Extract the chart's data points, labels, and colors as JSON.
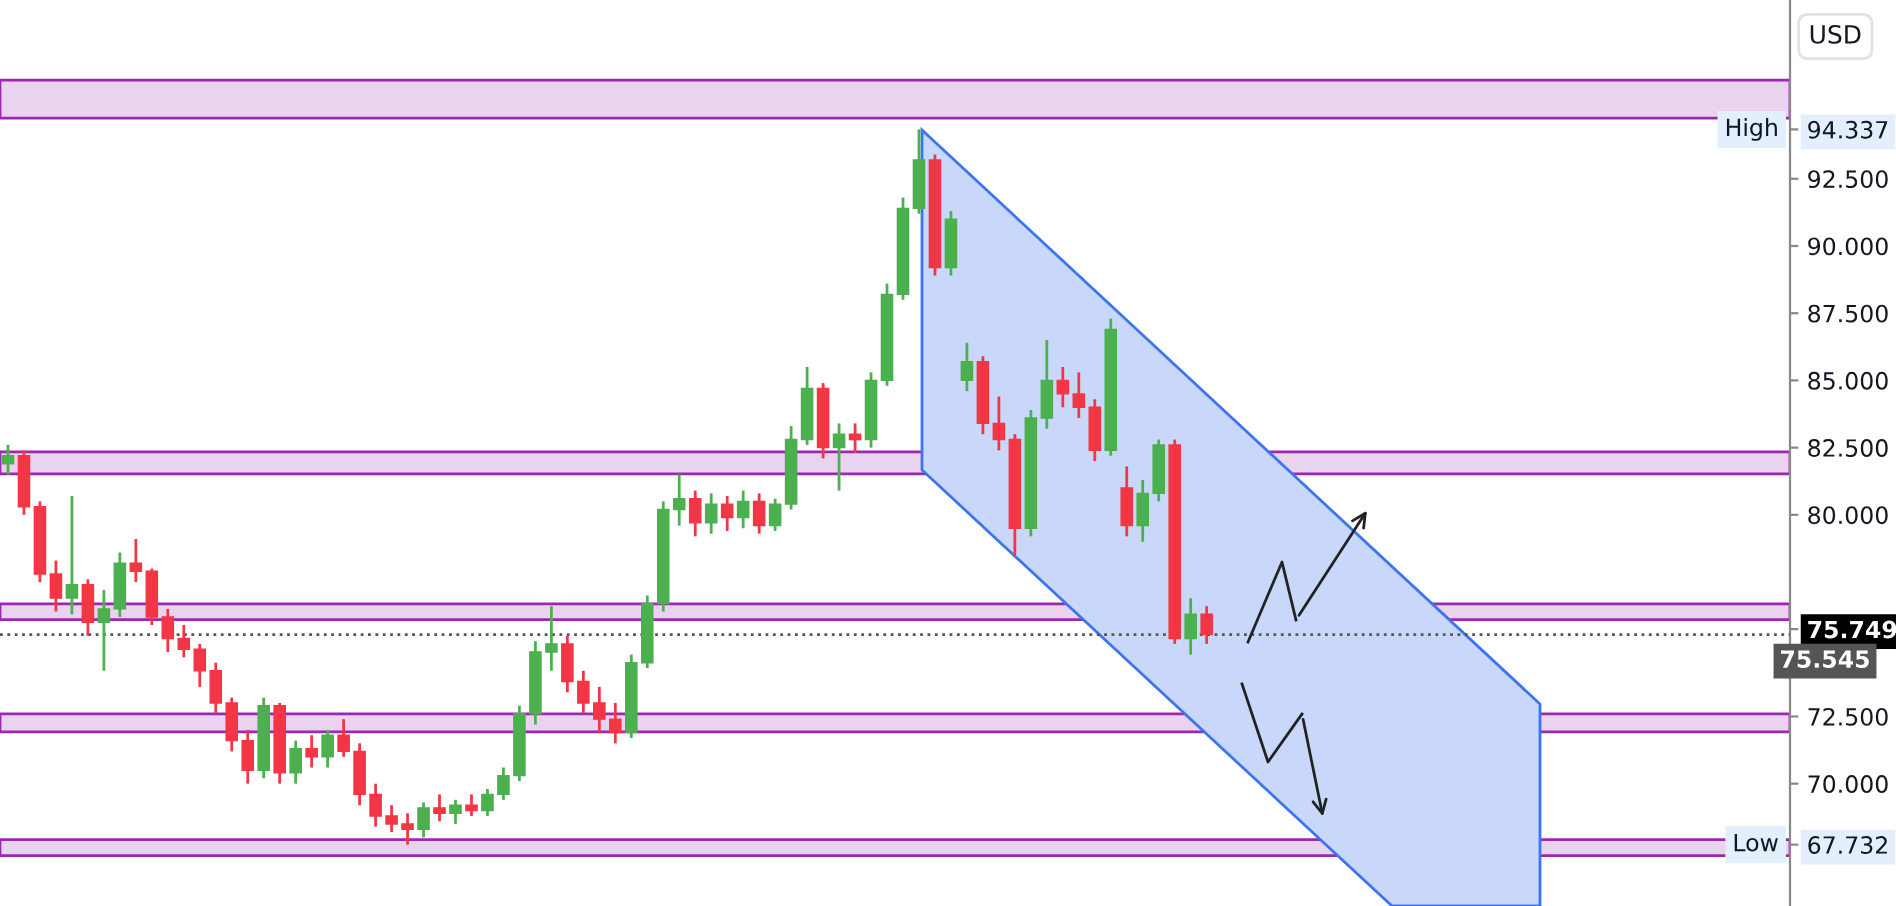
{
  "chart_data": {
    "type": "candlestick",
    "categories": [
      null,
      null,
      null,
      null,
      null,
      null,
      null,
      null,
      null,
      null,
      null,
      null,
      null,
      null,
      null,
      null,
      null,
      null,
      null,
      null,
      null,
      null,
      null,
      null,
      null,
      null,
      null,
      null,
      null,
      null,
      null,
      null,
      null,
      null,
      null,
      null,
      null,
      null,
      null,
      null,
      null,
      null,
      null,
      null,
      null,
      null,
      null,
      null,
      null,
      null,
      null,
      null,
      null,
      null,
      null,
      null,
      null,
      null,
      null,
      null,
      null,
      null,
      null,
      null,
      null,
      null,
      null,
      null,
      null,
      null,
      null,
      null,
      null,
      null,
      null,
      null,
      null,
      null,
      null,
      null,
      null,
      null,
      null,
      null,
      null,
      null,
      null,
      null,
      null,
      null,
      null,
      null,
      null,
      null,
      null,
      null,
      null,
      null,
      null,
      null,
      null,
      null,
      null,
      null,
      null,
      null,
      null,
      null,
      null,
      null,
      null,
      null
    ],
    "ohlc": [
      [
        81.9,
        82.6,
        81.5,
        82.2
      ],
      [
        82.2,
        82.4,
        80.0,
        80.3
      ],
      [
        80.3,
        80.5,
        77.5,
        77.8
      ],
      [
        77.8,
        78.3,
        76.4,
        76.9
      ],
      [
        76.9,
        80.7,
        76.3,
        77.4
      ],
      [
        77.4,
        77.6,
        75.5,
        76.0
      ],
      [
        76.0,
        77.2,
        74.2,
        76.5
      ],
      [
        76.5,
        78.6,
        76.2,
        78.2
      ],
      [
        78.2,
        79.1,
        77.5,
        77.9
      ],
      [
        77.9,
        78.0,
        75.9,
        76.2
      ],
      [
        76.2,
        76.5,
        74.9,
        75.4
      ],
      [
        75.4,
        75.9,
        74.7,
        75.0
      ],
      [
        75.0,
        75.2,
        73.6,
        74.2
      ],
      [
        74.2,
        74.5,
        72.6,
        73.0
      ],
      [
        73.0,
        73.2,
        71.2,
        71.6
      ],
      [
        71.6,
        72.0,
        70.0,
        70.5
      ],
      [
        70.5,
        73.2,
        70.2,
        72.9
      ],
      [
        72.9,
        73.0,
        70.0,
        70.4
      ],
      [
        70.4,
        71.6,
        70.0,
        71.3
      ],
      [
        71.3,
        71.8,
        70.6,
        71.0
      ],
      [
        71.0,
        72.0,
        70.6,
        71.8
      ],
      [
        71.8,
        72.4,
        71.0,
        71.2
      ],
      [
        71.2,
        71.5,
        69.2,
        69.6
      ],
      [
        69.6,
        70.0,
        68.4,
        68.8
      ],
      [
        68.8,
        69.2,
        68.2,
        68.5
      ],
      [
        68.5,
        68.9,
        67.732,
        68.3
      ],
      [
        68.3,
        69.3,
        68.0,
        69.1
      ],
      [
        69.1,
        69.6,
        68.6,
        68.9
      ],
      [
        68.9,
        69.4,
        68.5,
        69.2
      ],
      [
        69.2,
        69.6,
        68.8,
        69.0
      ],
      [
        69.0,
        69.8,
        68.8,
        69.6
      ],
      [
        69.6,
        70.6,
        69.4,
        70.3
      ],
      [
        70.3,
        72.9,
        70.1,
        72.6
      ],
      [
        72.6,
        75.3,
        72.2,
        74.9
      ],
      [
        74.9,
        76.6,
        74.2,
        75.2
      ],
      [
        75.2,
        75.5,
        73.4,
        73.8
      ],
      [
        73.8,
        74.2,
        72.6,
        73.0
      ],
      [
        73.0,
        73.6,
        71.9,
        72.4
      ],
      [
        72.4,
        73.0,
        71.5,
        71.9
      ],
      [
        71.9,
        74.8,
        71.7,
        74.5
      ],
      [
        74.5,
        77.0,
        74.3,
        76.7
      ],
      [
        76.7,
        80.5,
        76.4,
        80.2
      ],
      [
        80.2,
        81.5,
        79.6,
        80.6
      ],
      [
        80.6,
        80.9,
        79.2,
        79.7
      ],
      [
        79.7,
        80.8,
        79.3,
        80.4
      ],
      [
        80.4,
        80.7,
        79.4,
        79.9
      ],
      [
        79.9,
        80.9,
        79.5,
        80.5
      ],
      [
        80.5,
        80.8,
        79.3,
        79.6
      ],
      [
        79.6,
        80.6,
        79.4,
        80.4
      ],
      [
        80.4,
        83.3,
        80.2,
        82.8
      ],
      [
        82.8,
        85.5,
        82.6,
        84.7
      ],
      [
        84.7,
        84.9,
        82.1,
        82.5
      ],
      [
        82.5,
        83.4,
        80.9,
        83.0
      ],
      [
        83.0,
        83.4,
        82.3,
        82.8
      ],
      [
        82.8,
        85.3,
        82.5,
        85.0
      ],
      [
        85.0,
        88.6,
        84.8,
        88.2
      ],
      [
        88.2,
        91.8,
        88.0,
        91.4
      ],
      [
        91.4,
        94.337,
        91.2,
        93.2
      ],
      [
        93.2,
        93.4,
        88.9,
        89.2
      ],
      [
        89.2,
        91.3,
        88.9,
        91.0
      ],
      [
        85.0,
        86.4,
        84.6,
        85.7
      ],
      [
        85.7,
        85.9,
        83.0,
        83.4
      ],
      [
        83.4,
        84.4,
        82.4,
        82.8
      ],
      [
        82.8,
        83.0,
        78.5,
        79.5
      ],
      [
        79.5,
        83.9,
        79.2,
        83.6
      ],
      [
        83.6,
        86.5,
        83.2,
        85.0
      ],
      [
        85.0,
        85.5,
        84.0,
        84.5
      ],
      [
        84.5,
        85.3,
        83.6,
        84.0
      ],
      [
        84.0,
        84.3,
        82.0,
        82.4
      ],
      [
        82.4,
        87.3,
        82.2,
        86.9
      ],
      [
        81.0,
        81.8,
        79.2,
        79.6
      ],
      [
        79.6,
        81.3,
        79.0,
        80.8
      ],
      [
        80.8,
        82.8,
        80.5,
        82.6
      ],
      [
        82.6,
        82.8,
        75.2,
        75.4
      ],
      [
        75.4,
        76.9,
        74.8,
        76.3
      ],
      [
        76.3,
        76.6,
        75.2,
        75.545
      ],
      null,
      null,
      null,
      null,
      null,
      null,
      null,
      null,
      null,
      null,
      null,
      null,
      null,
      null,
      null,
      null,
      null,
      null,
      null,
      null,
      null,
      null,
      null,
      null,
      null,
      null,
      null,
      null,
      null,
      null,
      null,
      null,
      null,
      null,
      null,
      null
    ],
    "colors": [
      "#4caf50",
      "#f23645",
      "#f23645",
      "#f23645",
      "#4caf50",
      "#f23645",
      "#4caf50",
      "#4caf50",
      "#f23645",
      "#f23645",
      "#f23645",
      "#f23645",
      "#f23645",
      "#f23645",
      "#f23645",
      "#f23645",
      "#4caf50",
      "#f23645",
      "#4caf50",
      "#f23645",
      "#4caf50",
      "#f23645",
      "#f23645",
      "#f23645",
      "#f23645",
      "#f23645",
      "#4caf50",
      "#f23645",
      "#4caf50",
      "#f23645",
      "#4caf50",
      "#4caf50",
      "#4caf50",
      "#4caf50",
      "#4caf50",
      "#f23645",
      "#f23645",
      "#f23645",
      "#f23645",
      "#4caf50",
      "#4caf50",
      "#4caf50",
      "#4caf50",
      "#f23645",
      "#4caf50",
      "#f23645",
      "#4caf50",
      "#f23645",
      "#4caf50",
      "#4caf50",
      "#4caf50",
      "#f23645",
      "#4caf50",
      "#f23645",
      "#4caf50",
      "#4caf50",
      "#4caf50",
      "#4caf50",
      "#f23645",
      "#4caf50",
      "#4caf50",
      "#f23645",
      "#f23645",
      "#f23645",
      "#4caf50",
      "#4caf50",
      "#f23645",
      "#f23645",
      "#f23645",
      "#4caf50",
      "#f23645",
      "#4caf50",
      "#4caf50",
      "#f23645",
      "#4caf50",
      "#f23645",
      null,
      null,
      null,
      null,
      null,
      null,
      null,
      null,
      null,
      null,
      null,
      null,
      null,
      null,
      null,
      null,
      null,
      null,
      null,
      null,
      null,
      null,
      null,
      null,
      null,
      null,
      null,
      null,
      null,
      null,
      null,
      null,
      null,
      null,
      null,
      null
    ],
    "ylim": [
      65.45,
      99.15
    ],
    "yticks": [
      {
        "value": 94.337,
        "label": "94.337"
      },
      {
        "value": 92.5,
        "label": "92.500"
      },
      {
        "value": 90,
        "label": "90.000"
      },
      {
        "value": 87.5,
        "label": "87.500"
      },
      {
        "value": 85,
        "label": "85.000"
      },
      {
        "value": 82.5,
        "label": "82.500"
      },
      {
        "value": 80,
        "label": "80.000"
      },
      {
        "value": 75.749,
        "label": "75.749"
      },
      {
        "value": 72.5,
        "label": "72.500"
      },
      {
        "value": 70,
        "label": "70.000"
      },
      {
        "value": 67.732,
        "label": "67.732"
      }
    ],
    "tick_labels": "y",
    "grid": false,
    "bands": [
      {
        "axis": "y",
        "from": 94.76,
        "to": 96.17,
        "color": "#ead3ee"
      },
      {
        "axis": "y",
        "from": 81.52,
        "to": 82.34,
        "color": "#ead3ee"
      },
      {
        "axis": "y",
        "from": 76.1,
        "to": 76.69,
        "color": "#ead3ee"
      },
      {
        "axis": "y",
        "from": 71.93,
        "to": 72.6,
        "color": "#ead3ee"
      },
      {
        "axis": "y",
        "from": 67.32,
        "to": 67.92,
        "color": "#ead3ee"
      }
    ],
    "ref_lines": [
      {
        "axis": "y",
        "value": 75.545,
        "label": "75.545",
        "color": "#555555",
        "line_style": "dotted"
      }
    ],
    "annotations": [
      "USD",
      {
        "text": "High",
        "y": 94.337
      },
      {
        "text": "Low",
        "y": 67.732
      }
    ]
  }
}
